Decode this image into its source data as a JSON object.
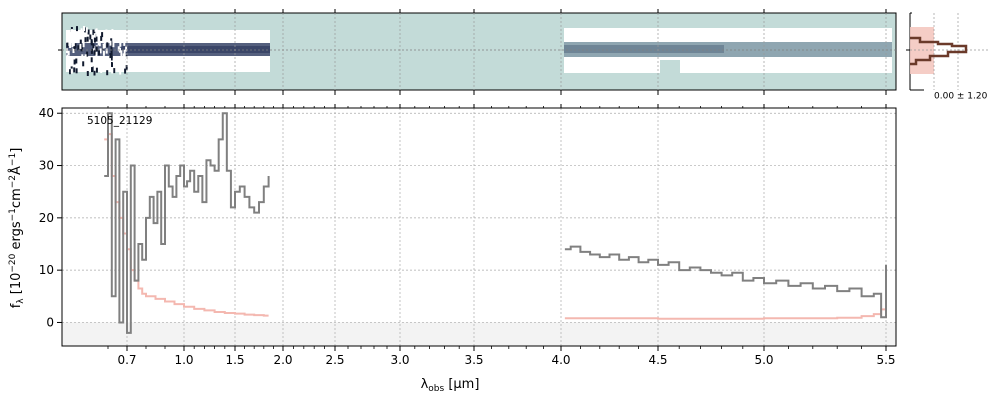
{
  "chart_data": {
    "type": "line",
    "object_id": "5105_21129",
    "xlabel_main": "λ",
    "xlabel_sub": "obs",
    "xlabel_unit": " [μm]",
    "ylabel": "f_λ [10^-20 ergs^-1 cm^-2 Å^-1]",
    "ylabel_parts": {
      "f": "f",
      "lam": "λ",
      "a": " [10",
      "e1": "−20",
      "b": " ergs",
      "e2": "−1",
      "c": "cm",
      "e3": "−2",
      "d": "Å",
      "e4": "−1",
      "e": "]"
    },
    "x_ticks": [
      "0.7",
      "1.0",
      "1.5",
      "2.0",
      "2.5",
      "3.0",
      "3.5",
      "4.0",
      "4.5",
      "5.0",
      "5.5"
    ],
    "x_tick_values": [
      0.7,
      1.0,
      1.5,
      2.0,
      2.5,
      3.0,
      3.5,
      4.0,
      4.5,
      5.0,
      5.5
    ],
    "y_ticks": [
      "0",
      "10",
      "20",
      "30",
      "40"
    ],
    "y_tick_values": [
      0,
      10,
      20,
      30,
      40
    ],
    "ylim": [
      -4.5,
      41
    ],
    "grid": true,
    "profile_label": "0.00 ± 1.20",
    "colors": {
      "flux": "#808080",
      "error": "#f4b8b0",
      "twod_bg": "#c3dbd8",
      "twod_trace": "#2e3a5a",
      "profile_line": "#6b3a2a",
      "profile_fill": "#f4c8c0"
    },
    "series": [
      {
        "role": "flux",
        "segments": [
          {
            "x": [
              0.58,
              0.6,
              0.62,
              0.64,
              0.66,
              0.68,
              0.7,
              0.72,
              0.74,
              0.76,
              0.78,
              0.8,
              0.82,
              0.84,
              0.86,
              0.88,
              0.9,
              0.92,
              0.94,
              0.96,
              0.98,
              1.0,
              1.03,
              1.06,
              1.1,
              1.14,
              1.18,
              1.22,
              1.26,
              1.3,
              1.34,
              1.38,
              1.42,
              1.46,
              1.5,
              1.55,
              1.6,
              1.65,
              1.7,
              1.75,
              1.8,
              1.85
            ],
            "y": [
              28,
              40,
              5,
              35,
              0,
              25,
              -2,
              30,
              8,
              15,
              12,
              20,
              24,
              19,
              25,
              15,
              30,
              26,
              24,
              28,
              30,
              26,
              27,
              29,
              25,
              28,
              23,
              31,
              30,
              29,
              35,
              40,
              29,
              22,
              25,
              26,
              24,
              22,
              21,
              23,
              26,
              28
            ]
          },
          {
            "x": [
              4.02,
              4.05,
              4.1,
              4.15,
              4.2,
              4.25,
              4.3,
              4.35,
              4.4,
              4.45,
              4.5,
              4.55,
              4.6,
              4.65,
              4.7,
              4.75,
              4.8,
              4.85,
              4.9,
              4.95,
              5.0,
              5.05,
              5.1,
              5.15,
              5.2,
              5.25,
              5.3,
              5.35,
              5.4,
              5.45,
              5.48,
              5.5
            ],
            "y": [
              14,
              14.5,
              13.5,
              13,
              12.5,
              13,
              12,
              12.5,
              11.5,
              12,
              11,
              11.5,
              10,
              10.5,
              10,
              9.5,
              9,
              9.5,
              8,
              8.5,
              7.5,
              8,
              7,
              7.5,
              6.5,
              7,
              6,
              6.5,
              5,
              5.5,
              1,
              11
            ]
          }
        ]
      },
      {
        "role": "error",
        "segments": [
          {
            "x": [
              0.58,
              0.6,
              0.62,
              0.64,
              0.66,
              0.68,
              0.7,
              0.72,
              0.74,
              0.76,
              0.78,
              0.8,
              0.85,
              0.9,
              0.95,
              1.0,
              1.1,
              1.2,
              1.3,
              1.4,
              1.5,
              1.6,
              1.7,
              1.8,
              1.85
            ],
            "y": [
              35,
              36,
              28,
              23,
              20,
              17,
              14,
              10,
              8,
              6.5,
              5.5,
              5,
              4.5,
              4,
              3.5,
              3,
              2.6,
              2.3,
              2.0,
              1.8,
              1.7,
              1.5,
              1.4,
              1.3,
              1.3
            ]
          },
          {
            "x": [
              4.02,
              4.5,
              5.0,
              5.3,
              5.4,
              5.45,
              5.48,
              5.5
            ],
            "y": [
              0.8,
              0.7,
              0.8,
              0.9,
              1.2,
              1.6,
              2.5,
              6.0
            ]
          }
        ]
      }
    ]
  }
}
